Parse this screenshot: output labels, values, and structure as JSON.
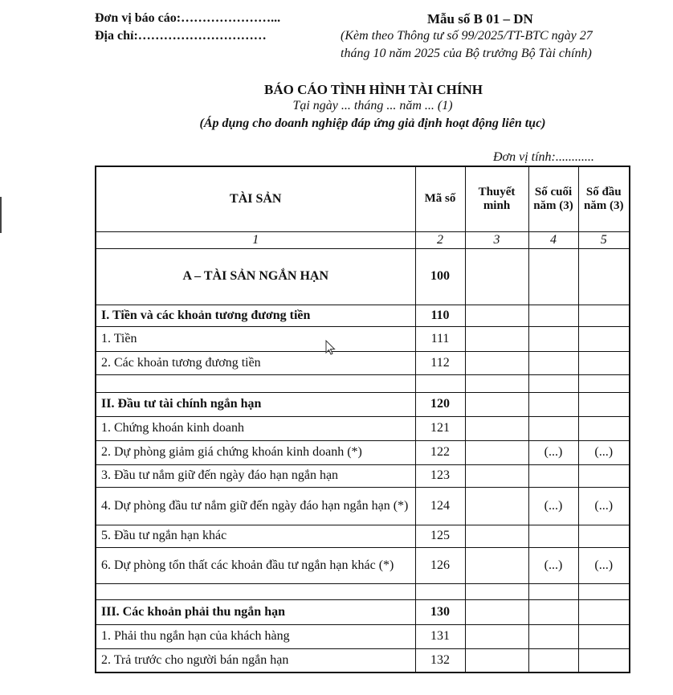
{
  "header": {
    "unit_label": "Đơn vị báo cáo:…………………...",
    "address_label": "Địa chỉ:…………………………",
    "form_number": "Mẫu số B 01 – DN",
    "form_note_line1": "(Kèm theo Thông tư số 99/2025/TT-BTC ngày 27",
    "form_note_line2": "tháng 10 năm 2025 của Bộ trưởng Bộ Tài chính)"
  },
  "title": {
    "main": "BÁO CÁO TÌNH HÌNH TÀI CHÍNH",
    "date": "Tại ngày ... tháng ... năm ... (1)",
    "scope": "(Áp dụng cho doanh nghiệp đáp ứng giả định hoạt động liên tục)",
    "currency_unit": "Đơn vị tính:............"
  },
  "table": {
    "columns": [
      "TÀI SẢN",
      "Mã số",
      "Thuyết minh",
      "Số cuối năm (3)",
      "Số đầu năm (3)"
    ],
    "column_numbers": [
      "1",
      "2",
      "3",
      "4",
      "5"
    ],
    "rows": [
      {
        "label": "A – TÀI SẢN NGẮN HẠN",
        "code": "100",
        "note": "",
        "end": "",
        "begin": "",
        "style": "section"
      },
      {
        "label": "I. Tiền và các khoản tương đương tiền",
        "code": "110",
        "note": "",
        "end": "",
        "begin": "",
        "style": "bold"
      },
      {
        "label": "1. Tiền",
        "code": "111",
        "note": "",
        "end": "",
        "begin": "",
        "style": ""
      },
      {
        "label": "2. Các khoản tương đương tiền",
        "code": "112",
        "note": "",
        "end": "",
        "begin": "",
        "style": ""
      },
      {
        "label": "",
        "code": "",
        "note": "",
        "end": "",
        "begin": "",
        "style": "empty"
      },
      {
        "label": "II. Đầu tư tài chính ngắn hạn",
        "code": "120",
        "note": "",
        "end": "",
        "begin": "",
        "style": "bold"
      },
      {
        "label": "1. Chứng khoán kinh doanh",
        "code": "121",
        "note": "",
        "end": "",
        "begin": "",
        "style": ""
      },
      {
        "label": "2. Dự phòng giảm giá chứng khoán kinh doanh (*)",
        "code": "122",
        "note": "",
        "end": "(...)",
        "begin": "(...)",
        "style": ""
      },
      {
        "label": "3. Đầu tư nắm giữ đến ngày đáo hạn ngắn hạn",
        "code": "123",
        "note": "",
        "end": "",
        "begin": "",
        "style": ""
      },
      {
        "label": "4. Dự phòng đầu tư nắm giữ đến ngày đáo hạn ngắn hạn (*)",
        "code": "124",
        "note": "",
        "end": "(...)",
        "begin": "(...)",
        "style": "tall"
      },
      {
        "label": "5. Đầu tư ngắn hạn khác",
        "code": "125",
        "note": "",
        "end": "",
        "begin": "",
        "style": ""
      },
      {
        "label": "6. Dự phòng tổn thất các khoản đầu tư ngắn hạn khác (*)",
        "code": "126",
        "note": "",
        "end": "(...)",
        "begin": "(...)",
        "style": "tall"
      },
      {
        "label": "",
        "code": "",
        "note": "",
        "end": "",
        "begin": "",
        "style": "empty"
      },
      {
        "label": "III. Các khoản phải thu ngắn hạn",
        "code": "130",
        "note": "",
        "end": "",
        "begin": "",
        "style": "bold"
      },
      {
        "label": "1. Phải thu ngắn hạn của khách hàng",
        "code": "131",
        "note": "",
        "end": "",
        "begin": "",
        "style": ""
      },
      {
        "label": "2. Trả trước cho người bán ngắn hạn",
        "code": "132",
        "note": "",
        "end": "",
        "begin": "",
        "style": ""
      }
    ]
  },
  "icons": {
    "cursor": "mouse-pointer-icon"
  }
}
